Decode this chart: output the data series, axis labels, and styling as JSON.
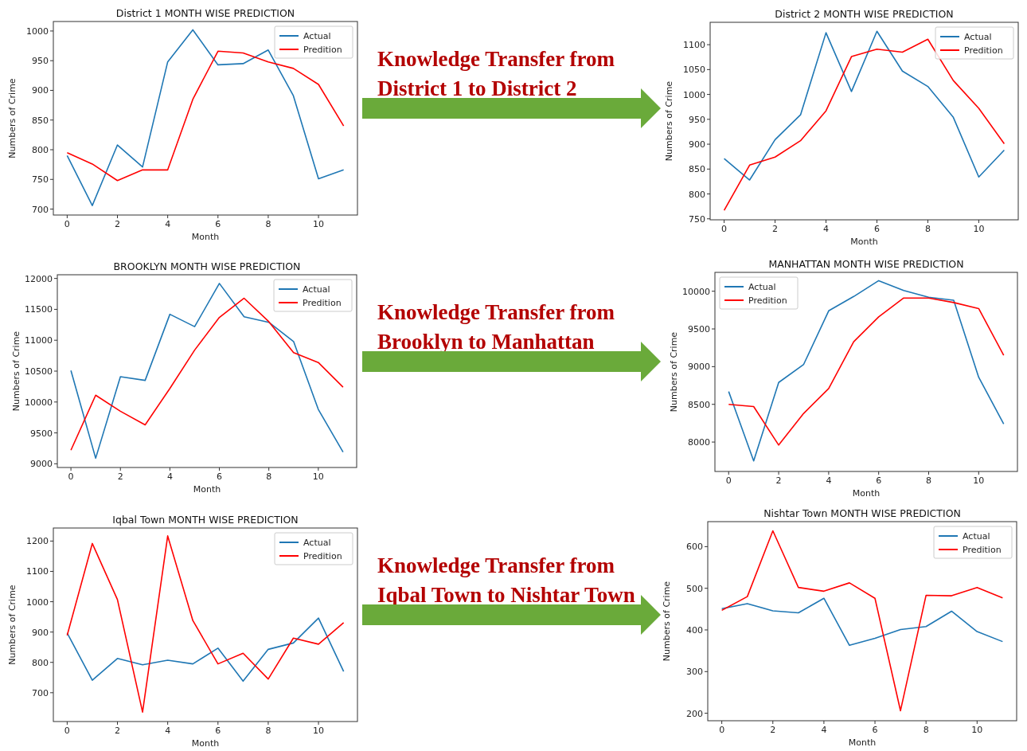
{
  "chart_data": [
    {
      "type": "line",
      "title": "District 1 MONTH WISE PREDICTION",
      "xlabel": "Month",
      "ylabel": "Numbers of Crime",
      "x": [
        0,
        1,
        2,
        3,
        4,
        5,
        6,
        7,
        8,
        9,
        10,
        11
      ],
      "xlim": [
        -0.55,
        11.55
      ],
      "xticks": [
        0,
        2,
        4,
        6,
        8,
        10
      ],
      "ylim": [
        690,
        1016
      ],
      "yticks": [
        700,
        750,
        800,
        850,
        900,
        950,
        1000
      ],
      "legend": "top right",
      "grid": false,
      "annotations": [
        "Knowledge Transfer from",
        "District 1 to District 2"
      ],
      "series": [
        {
          "name": "Actual",
          "color": "#1f77b4",
          "values": [
            790,
            706,
            808,
            771,
            948,
            1002,
            943,
            945,
            968,
            891,
            751,
            766
          ]
        },
        {
          "name": "Predition",
          "color": "#ff0000",
          "values": [
            795,
            776,
            748,
            766,
            766,
            885,
            966,
            963,
            948,
            937,
            910,
            840
          ]
        }
      ]
    },
    {
      "type": "line",
      "title": "District 2 MONTH WISE PREDICTION",
      "xlabel": "Month",
      "ylabel": "Numbers of Crime",
      "x": [
        0,
        1,
        2,
        3,
        4,
        5,
        6,
        7,
        8,
        9,
        10,
        11
      ],
      "xlim": [
        -0.55,
        11.55
      ],
      "xticks": [
        0,
        2,
        4,
        6,
        8,
        10
      ],
      "ylim": [
        748,
        1145
      ],
      "yticks": [
        750,
        800,
        850,
        900,
        950,
        1000,
        1050,
        1100
      ],
      "legend": "top right",
      "grid": false,
      "series": [
        {
          "name": "Actual",
          "color": "#1f77b4",
          "values": [
            871,
            828,
            909,
            959,
            1124,
            1006,
            1127,
            1047,
            1016,
            954,
            834,
            888
          ]
        },
        {
          "name": "Predition",
          "color": "#ff0000",
          "values": [
            767,
            858,
            874,
            907,
            967,
            1076,
            1091,
            1085,
            1111,
            1028,
            972,
            901
          ]
        }
      ]
    },
    {
      "type": "line",
      "title": "BROOKLYN MONTH WISE PREDICTION",
      "xlabel": "Month",
      "ylabel": "Numbers of Crime",
      "x": [
        0,
        1,
        2,
        3,
        4,
        5,
        6,
        7,
        8,
        9,
        10,
        11
      ],
      "xlim": [
        -0.55,
        11.55
      ],
      "xticks": [
        0,
        2,
        4,
        6,
        8,
        10
      ],
      "ylim": [
        8940,
        12060
      ],
      "yticks": [
        9000,
        9500,
        10000,
        10500,
        11000,
        11500,
        12000
      ],
      "legend": "top right",
      "grid": false,
      "annotations": [
        "Knowledge Transfer from",
        "Brooklyn to Manhattan"
      ],
      "series": [
        {
          "name": "Actual",
          "color": "#1f77b4",
          "values": [
            10510,
            9090,
            10410,
            10350,
            11420,
            11220,
            11920,
            11380,
            11290,
            10980,
            9880,
            9190
          ]
        },
        {
          "name": "Predition",
          "color": "#ff0000",
          "values": [
            9220,
            10110,
            9850,
            9630,
            10220,
            10840,
            11370,
            11680,
            11300,
            10800,
            10640,
            10240
          ]
        }
      ]
    },
    {
      "type": "line",
      "title": "MANHATTAN MONTH WISE PREDICTION",
      "xlabel": "Month",
      "ylabel": "Numbers of Crime",
      "x": [
        0,
        1,
        2,
        3,
        4,
        5,
        6,
        7,
        8,
        9,
        10,
        11
      ],
      "xlim": [
        -0.55,
        11.55
      ],
      "xticks": [
        0,
        2,
        4,
        6,
        8,
        10
      ],
      "ylim": [
        7610,
        10250
      ],
      "yticks": [
        8000,
        8500,
        9000,
        9500,
        10000
      ],
      "legend": "top left",
      "grid": false,
      "series": [
        {
          "name": "Actual",
          "color": "#1f77b4",
          "values": [
            8670,
            7750,
            8790,
            9030,
            9740,
            9930,
            10140,
            10010,
            9920,
            9880,
            8860,
            8240
          ]
        },
        {
          "name": "Predition",
          "color": "#ff0000",
          "values": [
            8500,
            8470,
            7960,
            8380,
            8710,
            9330,
            9660,
            9910,
            9910,
            9850,
            9770,
            9150
          ]
        }
      ]
    },
    {
      "type": "line",
      "title": "Iqbal Town MONTH WISE PREDICTION",
      "xlabel": "Month",
      "ylabel": "Numbers of Crime",
      "x": [
        0,
        1,
        2,
        3,
        4,
        5,
        6,
        7,
        8,
        9,
        10,
        11
      ],
      "xlim": [
        -0.55,
        11.55
      ],
      "xticks": [
        0,
        2,
        4,
        6,
        8,
        10
      ],
      "ylim": [
        605,
        1243
      ],
      "yticks": [
        700,
        800,
        900,
        1000,
        1100,
        1200
      ],
      "legend": "top right",
      "grid": false,
      "annotations": [
        "Knowledge Transfer from",
        "Iqbal Town to Nishtar Town"
      ],
      "series": [
        {
          "name": "Actual",
          "color": "#1f77b4",
          "values": [
            897,
            741,
            813,
            792,
            807,
            795,
            847,
            738,
            843,
            864,
            946,
            770
          ]
        },
        {
          "name": "Predition",
          "color": "#ff0000",
          "values": [
            889,
            1192,
            1007,
            636,
            1217,
            938,
            795,
            830,
            745,
            880,
            860,
            931
          ]
        }
      ]
    },
    {
      "type": "line",
      "title": "Nishtar Town MONTH WISE PREDICTION",
      "xlabel": "Month",
      "ylabel": "Numbers of Crime",
      "x": [
        0,
        1,
        2,
        3,
        4,
        5,
        6,
        7,
        8,
        9,
        10,
        11
      ],
      "xlim": [
        -0.55,
        11.55
      ],
      "xticks": [
        0,
        2,
        4,
        6,
        8,
        10
      ],
      "ylim": [
        182,
        660
      ],
      "yticks": [
        200,
        300,
        400,
        500,
        600
      ],
      "legend": "top right",
      "grid": false,
      "series": [
        {
          "name": "Actual",
          "color": "#1f77b4",
          "values": [
            451,
            463,
            446,
            441,
            476,
            363,
            380,
            401,
            408,
            445,
            396,
            372
          ]
        },
        {
          "name": "Predition",
          "color": "#ff0000",
          "values": [
            447,
            480,
            638,
            502,
            493,
            513,
            476,
            206,
            483,
            482,
            502,
            477
          ]
        }
      ]
    }
  ]
}
